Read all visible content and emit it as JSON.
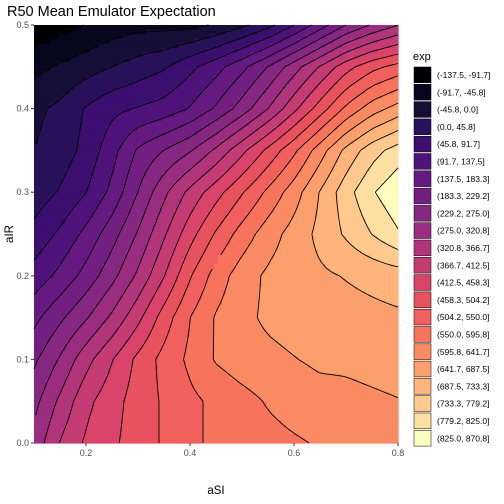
{
  "chart_data": {
    "type": "contour",
    "title": "R50 Mean Emulator Expectation",
    "xlabel": "aSI",
    "ylabel": "aIR",
    "xlim": [
      0.1,
      0.8
    ],
    "ylim": [
      0.0,
      0.5
    ],
    "x_ticks": [
      "0.2",
      "0.4",
      "0.6",
      "0.8"
    ],
    "x_tick_values": [
      0.2,
      0.4,
      0.6,
      0.8
    ],
    "y_ticks": [
      "0.0",
      "0.1",
      "0.2",
      "0.3",
      "0.4",
      "0.5"
    ],
    "y_tick_values": [
      0.0,
      0.1,
      0.2,
      0.3,
      0.4,
      0.5
    ],
    "grid": true,
    "legend_title": "exp",
    "legend_position": "right",
    "legend": [
      {
        "label": "(-137.5, -91.7]",
        "color": "#000004"
      },
      {
        "label": "(-91.7, -45.8]",
        "color": "#07061c"
      },
      {
        "label": "(-45.8, 0.0]",
        "color": "#150e37"
      },
      {
        "label": "(0.0, 45.8]",
        "color": "#29115a"
      },
      {
        "label": "(45.8, 91.7]",
        "color": "#3b0f70"
      },
      {
        "label": "(91.7, 137.5]",
        "color": "#4f127b"
      },
      {
        "label": "(137.5, 183.3]",
        "color": "#641a80"
      },
      {
        "label": "(183.3, 229.2]",
        "color": "#721f81"
      },
      {
        "label": "(229.2, 275.0]",
        "color": "#862781"
      },
      {
        "label": "(275.0, 320.8]",
        "color": "#9a2d80"
      },
      {
        "label": "(320.8, 366.7]",
        "color": "#b1357b"
      },
      {
        "label": "(366.7, 412.5]",
        "color": "#c53c74"
      },
      {
        "label": "(412.5, 458.3]",
        "color": "#da446a"
      },
      {
        "label": "(458.3, 504.2]",
        "color": "#e8525e"
      },
      {
        "label": "(504.2, 550.0]",
        "color": "#f1605d"
      },
      {
        "label": "(550.0, 595.8]",
        "color": "#f7735c"
      },
      {
        "label": "(595.8, 641.7]",
        "color": "#fa8a62"
      },
      {
        "label": "(641.7, 687.5]",
        "color": "#fb9f6d"
      },
      {
        "label": "(687.5, 733.3]",
        "color": "#feb47b"
      },
      {
        "label": "(733.3, 779.2]",
        "color": "#fec98d"
      },
      {
        "label": "(779.2, 825.0]",
        "color": "#fde0a1"
      },
      {
        "label": "(825.0, 870.8]",
        "color": "#fcfdbf"
      }
    ],
    "z_range": [
      -137.5,
      870.8
    ],
    "z_breaks": [
      -137.5,
      -91.7,
      -45.8,
      0.0,
      45.8,
      91.7,
      137.5,
      183.3,
      229.2,
      275.0,
      320.8,
      366.7,
      412.5,
      458.3,
      504.2,
      550.0,
      595.8,
      641.7,
      687.5,
      733.3,
      779.2,
      825.0,
      870.8
    ],
    "z_grid_x": [
      0.1,
      0.15,
      0.2,
      0.25,
      0.3,
      0.35,
      0.4,
      0.45,
      0.5,
      0.55,
      0.6,
      0.65,
      0.7,
      0.75,
      0.8
    ],
    "z_grid_y": [
      0.0,
      0.05,
      0.1,
      0.15,
      0.2,
      0.25,
      0.3,
      0.35,
      0.4,
      0.45,
      0.5
    ],
    "z_grid": [
      [
        290,
        370,
        420,
        450,
        480,
        510,
        540,
        560,
        570,
        580,
        590,
        600,
        610,
        615,
        620
      ],
      [
        260,
        330,
        400,
        440,
        480,
        510,
        540,
        560,
        580,
        600,
        615,
        625,
        630,
        635,
        640
      ],
      [
        220,
        280,
        350,
        410,
        470,
        520,
        560,
        600,
        620,
        630,
        640,
        650,
        650,
        655,
        660
      ],
      [
        170,
        220,
        270,
        330,
        400,
        480,
        550,
        600,
        630,
        650,
        660,
        665,
        670,
        675,
        680
      ],
      [
        110,
        150,
        200,
        260,
        330,
        410,
        500,
        570,
        620,
        650,
        670,
        680,
        690,
        700,
        710
      ],
      [
        60,
        100,
        150,
        210,
        280,
        360,
        440,
        510,
        570,
        620,
        660,
        700,
        740,
        780,
        820
      ],
      [
        20,
        50,
        90,
        150,
        230,
        310,
        380,
        440,
        500,
        560,
        620,
        690,
        760,
        820,
        860
      ],
      [
        0,
        20,
        60,
        120,
        190,
        230,
        270,
        330,
        400,
        470,
        540,
        620,
        700,
        760,
        800
      ],
      [
        -10,
        10,
        50,
        80,
        95,
        110,
        140,
        190,
        250,
        320,
        400,
        480,
        560,
        620,
        660
      ],
      [
        -60,
        -40,
        -20,
        0,
        20,
        40,
        80,
        120,
        170,
        230,
        300,
        370,
        440,
        490,
        520
      ],
      [
        -130,
        -110,
        -90,
        -70,
        -60,
        -60,
        -60,
        -40,
        -10,
        30,
        90,
        160,
        230,
        280,
        320
      ]
    ]
  }
}
